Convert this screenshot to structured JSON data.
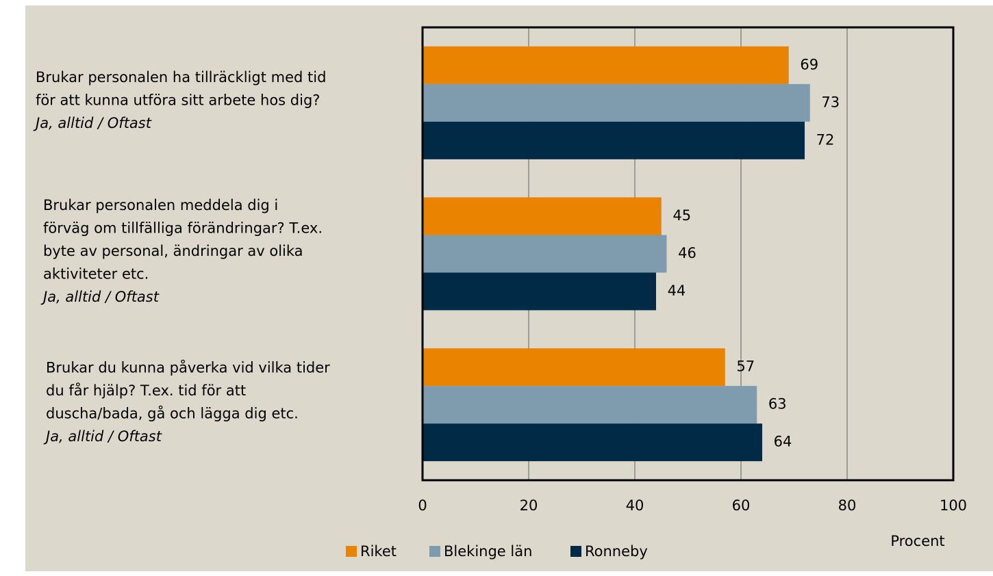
{
  "chart_data": {
    "type": "barh",
    "categories": [
      [
        "Brukar personalen ha tillräckligt med tid",
        "för att kunna utföra sitt arbete hos dig?"
      ],
      [
        "Brukar personalen meddela dig i",
        "förväg om tillfälliga förändringar? T.ex.",
        "byte av personal, ändringar av olika",
        "aktiviteter etc."
      ],
      [
        "Brukar du kunna påverka vid vilka tider",
        "du får hjälp? T.ex. tid för att",
        "duscha/bada, gå och lägga dig etc."
      ]
    ],
    "category_notes": [
      "Ja, alltid / Oftast",
      "Ja, alltid / Oftast",
      "Ja, alltid / Oftast"
    ],
    "series": [
      {
        "name": "Riket",
        "color": "#e98300",
        "values": [
          69,
          45,
          57
        ]
      },
      {
        "name": "Blekinge län",
        "color": "#7f9bae",
        "values": [
          73,
          46,
          63
        ]
      },
      {
        "name": "Ronneby",
        "color": "#002a46",
        "values": [
          72,
          44,
          64
        ]
      }
    ],
    "xlim": [
      0,
      100
    ],
    "xticks": [
      0,
      20,
      40,
      60,
      80,
      100
    ],
    "xlabel": "Procent",
    "grid": true,
    "legend": "bottom"
  }
}
